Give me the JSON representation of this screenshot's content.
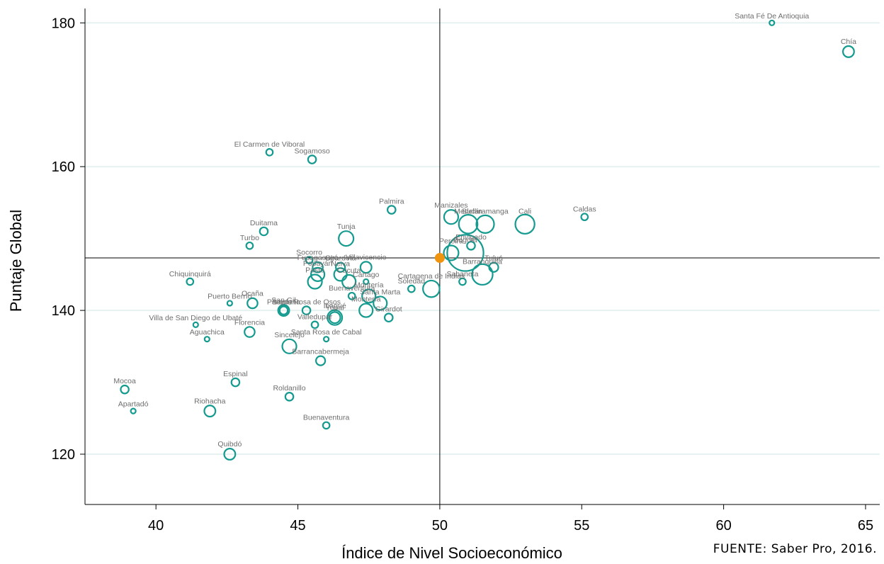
{
  "source_note": "FUENTE: Saber Pro, 2016.",
  "colors": {
    "bubble": "#149a8e",
    "reference_point": "#f0930e",
    "grid": "#e6f2f1",
    "axis": "#000000"
  },
  "chart_data": {
    "type": "scatter",
    "title": "",
    "xlabel": "Índice de Nivel Socioeconómico",
    "ylabel": "Puntaje Global",
    "xlim": [
      37.5,
      65.5
    ],
    "ylim": [
      113,
      182
    ],
    "xticks": [
      40,
      45,
      50,
      55,
      60,
      65
    ],
    "yticks": [
      120,
      140,
      160,
      180
    ],
    "grid": "horizontal",
    "reference_lines": {
      "x": 50,
      "y": 147.3
    },
    "reference_point": {
      "x": 50,
      "y": 147.3
    },
    "points": [
      {
        "label": "Santa Fé De Antioquia",
        "x": 61.7,
        "y": 180,
        "size": 1
      },
      {
        "label": "Chía",
        "x": 64.4,
        "y": 176,
        "size": 6
      },
      {
        "label": "El Carmen de Viboral",
        "x": 44.0,
        "y": 162,
        "size": 2
      },
      {
        "label": "Sogamoso",
        "x": 45.5,
        "y": 161,
        "size": 3
      },
      {
        "label": "Palmira",
        "x": 48.3,
        "y": 154,
        "size": 3
      },
      {
        "label": "Caldas",
        "x": 55.1,
        "y": 153,
        "size": 2
      },
      {
        "label": "Manizales",
        "x": 50.4,
        "y": 153,
        "size": 10
      },
      {
        "label": "Medellín",
        "x": 51.0,
        "y": 152,
        "size": 18
      },
      {
        "label": "Cali",
        "x": 53.0,
        "y": 152,
        "size": 19
      },
      {
        "label": "Bucaramanga",
        "x": 51.6,
        "y": 152,
        "size": 16
      },
      {
        "label": "Duitama",
        "x": 43.8,
        "y": 151,
        "size": 3
      },
      {
        "label": "Tunja",
        "x": 46.7,
        "y": 150,
        "size": 11
      },
      {
        "label": "Envigado",
        "x": 51.1,
        "y": 149,
        "size": 3
      },
      {
        "label": "Turbo",
        "x": 43.3,
        "y": 149,
        "size": 2
      },
      {
        "label": "Bogotá",
        "x": 50.9,
        "y": 148,
        "size": 70
      },
      {
        "label": "Pereira",
        "x": 50.4,
        "y": 148,
        "size": 11
      },
      {
        "label": "Socorro",
        "x": 45.4,
        "y": 147,
        "size": 2
      },
      {
        "label": "Tuluá",
        "x": 51.9,
        "y": 146,
        "size": 4
      },
      {
        "label": "Fusagasugá",
        "x": 45.7,
        "y": 146,
        "size": 5
      },
      {
        "label": "Girardota",
        "x": 46.5,
        "y": 146,
        "size": 4
      },
      {
        "label": "Villavicencio",
        "x": 47.4,
        "y": 146,
        "size": 6
      },
      {
        "label": "Popayán",
        "x": 45.7,
        "y": 145,
        "size": 9
      },
      {
        "label": "Neiva",
        "x": 46.5,
        "y": 145,
        "size": 8
      },
      {
        "label": "Barranquilla",
        "x": 51.5,
        "y": 145,
        "size": 22
      },
      {
        "label": "Pasto",
        "x": 45.6,
        "y": 144,
        "size": 10
      },
      {
        "label": "Cúcuta",
        "x": 46.8,
        "y": 144,
        "size": 9
      },
      {
        "label": "Cartago",
        "x": 47.4,
        "y": 144,
        "size": 1
      },
      {
        "label": "Sabaneta",
        "x": 50.8,
        "y": 144,
        "size": 2
      },
      {
        "label": "Cartagena de Indias",
        "x": 49.7,
        "y": 143,
        "size": 14
      },
      {
        "label": "Chiquinquirá",
        "x": 41.2,
        "y": 144,
        "size": 2
      },
      {
        "label": "Soledad",
        "x": 49.0,
        "y": 143,
        "size": 2
      },
      {
        "label": "Buenaventura",
        "x": 46.9,
        "y": 142,
        "size": 2
      },
      {
        "label": "Montería",
        "x": 47.5,
        "y": 142,
        "size": 9
      },
      {
        "label": "Santa Marta",
        "x": 47.9,
        "y": 141,
        "size": 9
      },
      {
        "label": "Ocaña",
        "x": 43.4,
        "y": 141,
        "size": 5
      },
      {
        "label": "Puerto Berrío",
        "x": 42.6,
        "y": 141,
        "size": 1
      },
      {
        "label": "San Gil",
        "x": 44.5,
        "y": 140,
        "size": 6
      },
      {
        "label": "Santa Rosa de Osos",
        "x": 45.3,
        "y": 140,
        "size": 3
      },
      {
        "label": "Montería",
        "x": 47.4,
        "y": 140,
        "size": 9
      },
      {
        "label": "Girardot",
        "x": 48.2,
        "y": 139,
        "size": 3
      },
      {
        "label": "Ibagué",
        "x": 46.3,
        "y": 139,
        "size": 11
      },
      {
        "label": "Yopal",
        "x": 46.3,
        "y": 139,
        "size": 6
      },
      {
        "label": "Pamplona",
        "x": 44.5,
        "y": 140,
        "size": 3
      },
      {
        "label": "Villa de San Diego de Ubaté",
        "x": 41.4,
        "y": 138,
        "size": 1
      },
      {
        "label": "Valledupar",
        "x": 45.6,
        "y": 138,
        "size": 2
      },
      {
        "label": "Florencia",
        "x": 43.3,
        "y": 137,
        "size": 5
      },
      {
        "label": "Aguachica",
        "x": 41.8,
        "y": 136,
        "size": 1
      },
      {
        "label": "Santa Rosa de Cabal",
        "x": 46.0,
        "y": 136,
        "size": 1
      },
      {
        "label": "Sincelejo",
        "x": 44.7,
        "y": 135,
        "size": 10
      },
      {
        "label": "Barrancabermeja",
        "x": 45.8,
        "y": 133,
        "size": 4
      },
      {
        "label": "Espinal",
        "x": 42.8,
        "y": 130,
        "size": 3
      },
      {
        "label": "Mocoa",
        "x": 38.9,
        "y": 129,
        "size": 3
      },
      {
        "label": "Roldanillo",
        "x": 44.7,
        "y": 128,
        "size": 3
      },
      {
        "label": "Riohacha",
        "x": 41.9,
        "y": 126,
        "size": 6
      },
      {
        "label": "Apartadó",
        "x": 39.2,
        "y": 126,
        "size": 1
      },
      {
        "label": "Buenaventura",
        "x": 46.0,
        "y": 124,
        "size": 2
      },
      {
        "label": "Quibdó",
        "x": 42.6,
        "y": 120,
        "size": 6
      }
    ]
  }
}
